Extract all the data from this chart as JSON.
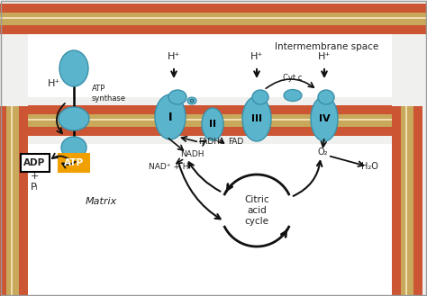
{
  "bg_color": "#f0f0ee",
  "membrane_orange": "#cc5533",
  "membrane_tan": "#c8a85a",
  "membrane_white": "#f0ddb0",
  "protein_fill": "#5ab4cc",
  "protein_edge": "#3a90aa",
  "text_color": "#222222",
  "arrow_color": "#111111",
  "atp_orange": "#f0a000",
  "border_gray": "#aaaaaa",
  "figsize": [
    4.74,
    3.29
  ],
  "dpi": 100,
  "intermembrane_label": "Intermembrane space",
  "matrix_label": "Matrix",
  "atp_synthase_label": "ATP\nsynthase"
}
